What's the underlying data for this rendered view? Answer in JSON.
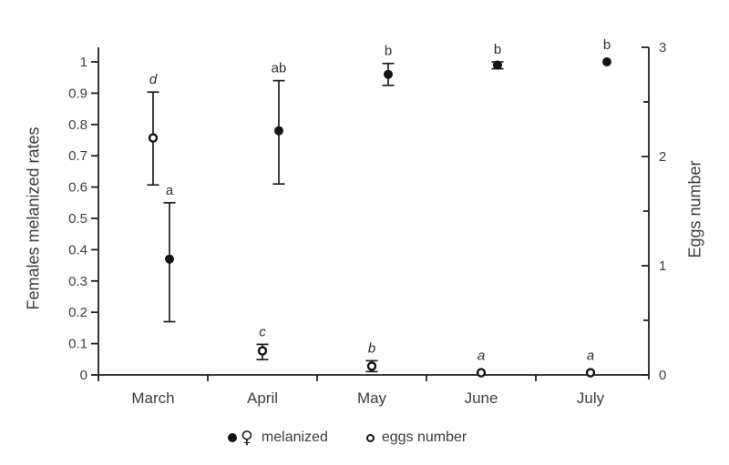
{
  "figure": {
    "background": "#ffffff",
    "line_ink": "#1f1f1f",
    "marker_ink": "#141414",
    "text_ink": "#404040"
  },
  "chart_data": {
    "type": "scatter",
    "title": "",
    "xlabel": "",
    "ylabel_left": "Females melanized rates",
    "ylabel_right": "Eggs number",
    "ylim_left": [
      0,
      1.05
    ],
    "ylim_right": [
      0,
      3
    ],
    "grid": false,
    "legend_position": "bottom-center",
    "categories": [
      "March",
      "April",
      "May",
      "June",
      "July"
    ],
    "series": [
      {
        "name": "melanized",
        "axis": "left",
        "marker": "filled-circle",
        "values": [
          0.37,
          0.78,
          0.96,
          0.99,
          1.0
        ],
        "err_low": [
          0.17,
          0.61,
          0.925,
          0.978,
          1.0
        ],
        "err_high": [
          0.55,
          0.94,
          0.995,
          1.0,
          1.0
        ],
        "sig_labels": [
          "a",
          "ab",
          "b",
          "b",
          "b"
        ],
        "sig_italic": false
      },
      {
        "name": "eggs number",
        "axis": "right",
        "marker": "open-circle",
        "values": [
          2.17,
          0.22,
          0.08,
          0.02,
          0.02
        ],
        "err_low": [
          1.74,
          0.14,
          0.03,
          0.02,
          0.02
        ],
        "err_high": [
          2.59,
          0.28,
          0.13,
          0.02,
          0.02
        ],
        "sig_labels": [
          "d",
          "c",
          "b",
          "a",
          "a"
        ],
        "sig_italic": true
      }
    ]
  },
  "axes": {
    "left": {
      "title": "Females melanized rates",
      "tick_values": [
        1,
        0.9,
        0.8,
        0.7,
        0.6,
        0.5,
        0.4,
        0.3,
        0.2,
        0.1,
        0
      ],
      "tick_labels": [
        "1",
        "0.9",
        "0.8",
        "0.7",
        "0.6",
        "0.5",
        "0.4",
        "0.3",
        "0.2",
        "0.1",
        "0"
      ]
    },
    "right": {
      "title": "Eggs number",
      "tick_values": [
        3,
        2.5,
        2,
        1.5,
        1,
        0.5,
        0
      ],
      "tick_labels": [
        "3",
        "",
        "2",
        "",
        "1",
        "",
        "0"
      ]
    },
    "x": {
      "categories": [
        "March",
        "April",
        "May",
        "June",
        "July"
      ]
    }
  },
  "legend": {
    "melanized": {
      "marker": "filled-circle",
      "symbol": "♀",
      "label": "melanized"
    },
    "eggs": {
      "marker": "open-circle",
      "label": "eggs number"
    }
  }
}
